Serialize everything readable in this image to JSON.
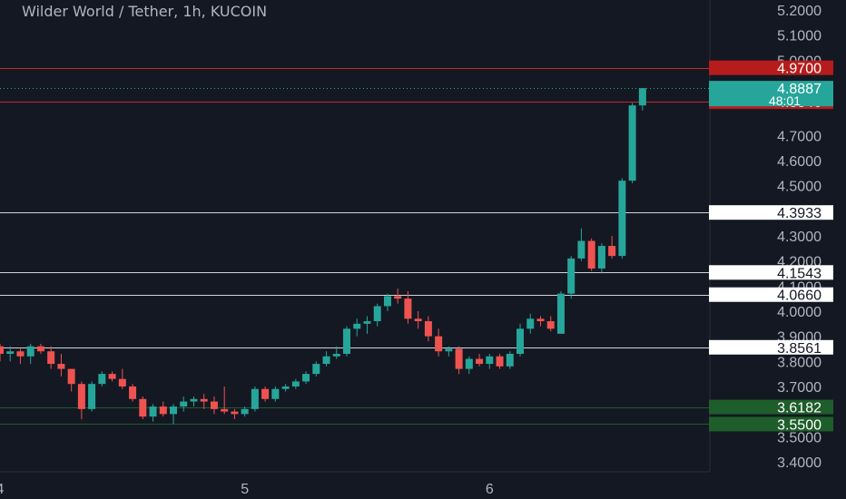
{
  "header": {
    "title": "Wilder World / Tether, 1h, KUCOIN"
  },
  "colors": {
    "background": "#141823",
    "up": "#26a69a",
    "down": "#ef5350",
    "text": "#b2b5be",
    "support": "#1e5e2a",
    "resistance": "#b71c1c"
  },
  "chart_data": {
    "type": "candlestick",
    "title": "Wilder World / Tether, 1h, KUCOIN",
    "ylim": [
      3.36,
      5.24
    ],
    "y_ticks": [
      "5.2000",
      "5.1000",
      "5.0000",
      "4.7000",
      "4.6000",
      "4.5000",
      "4.3000",
      "4.2000",
      "4.1000",
      "4.0000",
      "3.9000",
      "3.8000",
      "3.7000",
      "3.5000",
      "3.4000"
    ],
    "x_ticks": [
      {
        "label": "4",
        "x": 4
      },
      {
        "label": "5",
        "x": 5
      },
      {
        "label": "6",
        "x": 6
      }
    ],
    "x_range": [
      4.0,
      6.9
    ],
    "levels": [
      {
        "label": "4.9700",
        "value": 4.97,
        "kind": "resistance"
      },
      {
        "label": "4.8346",
        "value": 4.8346,
        "kind": "resistance"
      },
      {
        "label": "4.3933",
        "value": 4.3933,
        "kind": "level"
      },
      {
        "label": "4.1543",
        "value": 4.1543,
        "kind": "level"
      },
      {
        "label": "4.0660",
        "value": 4.066,
        "kind": "level"
      },
      {
        "label": "3.8561",
        "value": 3.8561,
        "kind": "level"
      },
      {
        "label": "3.6182",
        "value": 3.6182,
        "kind": "support"
      },
      {
        "label": "3.5500",
        "value": 3.55,
        "kind": "support"
      }
    ],
    "last_price": {
      "label": "4.8887",
      "value": 4.8887,
      "countdown": "48:01"
    },
    "candles": [
      [
        3.86,
        3.87,
        3.8,
        3.83
      ],
      [
        3.83,
        3.86,
        3.8,
        3.84
      ],
      [
        3.84,
        3.85,
        3.79,
        3.82
      ],
      [
        3.82,
        3.87,
        3.79,
        3.86
      ],
      [
        3.86,
        3.87,
        3.83,
        3.84
      ],
      [
        3.84,
        3.86,
        3.77,
        3.79
      ],
      [
        3.79,
        3.83,
        3.74,
        3.77
      ],
      [
        3.77,
        3.77,
        3.68,
        3.71
      ],
      [
        3.71,
        3.72,
        3.57,
        3.61
      ],
      [
        3.61,
        3.72,
        3.6,
        3.71
      ],
      [
        3.71,
        3.76,
        3.7,
        3.75
      ],
      [
        3.75,
        3.76,
        3.72,
        3.73
      ],
      [
        3.73,
        3.77,
        3.69,
        3.7
      ],
      [
        3.7,
        3.71,
        3.64,
        3.65
      ],
      [
        3.65,
        3.66,
        3.57,
        3.58
      ],
      [
        3.58,
        3.63,
        3.56,
        3.62
      ],
      [
        3.62,
        3.64,
        3.58,
        3.59
      ],
      [
        3.59,
        3.63,
        3.55,
        3.62
      ],
      [
        3.62,
        3.66,
        3.6,
        3.64
      ],
      [
        3.64,
        3.66,
        3.62,
        3.65
      ],
      [
        3.65,
        3.67,
        3.61,
        3.64
      ],
      [
        3.64,
        3.66,
        3.59,
        3.61
      ],
      [
        3.61,
        3.7,
        3.59,
        3.6
      ],
      [
        3.6,
        3.61,
        3.57,
        3.59
      ],
      [
        3.59,
        3.62,
        3.58,
        3.61
      ],
      [
        3.61,
        3.7,
        3.6,
        3.69
      ],
      [
        3.69,
        3.7,
        3.64,
        3.65
      ],
      [
        3.65,
        3.7,
        3.64,
        3.69
      ],
      [
        3.69,
        3.71,
        3.68,
        3.7
      ],
      [
        3.7,
        3.73,
        3.69,
        3.72
      ],
      [
        3.72,
        3.76,
        3.71,
        3.75
      ],
      [
        3.75,
        3.8,
        3.74,
        3.79
      ],
      [
        3.79,
        3.84,
        3.78,
        3.82
      ],
      [
        3.82,
        3.86,
        3.81,
        3.83
      ],
      [
        3.83,
        3.94,
        3.82,
        3.93
      ],
      [
        3.93,
        3.97,
        3.9,
        3.95
      ],
      [
        3.95,
        3.98,
        3.91,
        3.96
      ],
      [
        3.96,
        4.03,
        3.94,
        4.02
      ],
      [
        4.02,
        4.07,
        4.0,
        4.06
      ],
      [
        4.06,
        4.09,
        4.03,
        4.05
      ],
      [
        4.05,
        4.08,
        3.95,
        3.97
      ],
      [
        3.97,
        4.0,
        3.93,
        3.96
      ],
      [
        3.96,
        3.98,
        3.88,
        3.9
      ],
      [
        3.9,
        3.93,
        3.82,
        3.84
      ],
      [
        3.84,
        3.86,
        3.82,
        3.85
      ],
      [
        3.85,
        3.86,
        3.75,
        3.77
      ],
      [
        3.77,
        3.82,
        3.75,
        3.81
      ],
      [
        3.81,
        3.83,
        3.78,
        3.79
      ],
      [
        3.79,
        3.83,
        3.77,
        3.82
      ],
      [
        3.82,
        3.83,
        3.77,
        3.78
      ],
      [
        3.78,
        3.84,
        3.77,
        3.83
      ],
      [
        3.83,
        3.95,
        3.82,
        3.93
      ],
      [
        3.93,
        3.99,
        3.91,
        3.97
      ],
      [
        3.97,
        3.98,
        3.94,
        3.96
      ],
      [
        3.96,
        3.98,
        3.92,
        3.93
      ],
      [
        3.91,
        4.08,
        3.91,
        4.07
      ],
      [
        4.07,
        4.22,
        4.05,
        4.21
      ],
      [
        4.21,
        4.33,
        4.2,
        4.28
      ],
      [
        4.28,
        4.29,
        4.16,
        4.17
      ],
      [
        4.17,
        4.27,
        4.15,
        4.26
      ],
      [
        4.26,
        4.3,
        4.21,
        4.22
      ],
      [
        4.22,
        4.53,
        4.21,
        4.52
      ],
      [
        4.52,
        4.83,
        4.51,
        4.82
      ],
      [
        4.82,
        4.89,
        4.8,
        4.8887
      ]
    ]
  }
}
